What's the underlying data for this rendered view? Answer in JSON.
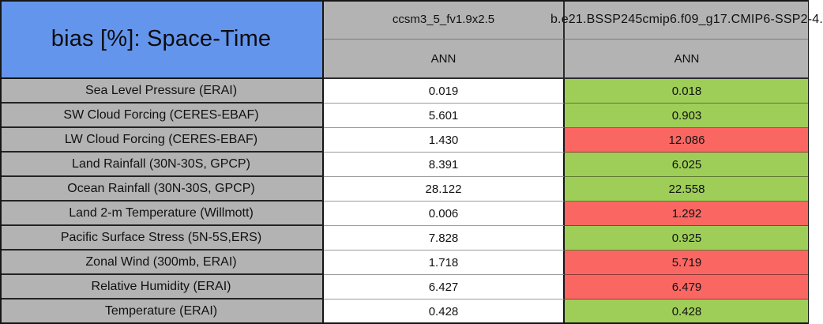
{
  "colors": {
    "title_bg": "#6495ED",
    "header_bg": "#B3B3B3",
    "label_bg": "#B3B3B3",
    "value_bg": "#FFFFFF",
    "good_bg": "#9ECE58",
    "bad_bg": "#FA6763",
    "border": "#161616"
  },
  "chart_data": {
    "type": "table",
    "title": "bias [%]: Space-Time",
    "columns": [
      {
        "model": "ccsm3_5_fv1.9x2.5",
        "season": "ANN"
      },
      {
        "model": "b.e21.BSSP245cmip6.f09_g17.CMIP6-SSP2-4.",
        "season": "ANN"
      }
    ],
    "rows": [
      {
        "label": "Sea Level Pressure (ERAI)",
        "values": [
          "0.019",
          "0.018"
        ],
        "status": "good"
      },
      {
        "label": "SW Cloud Forcing (CERES-EBAF)",
        "values": [
          "5.601",
          "0.903"
        ],
        "status": "good"
      },
      {
        "label": "LW Cloud Forcing (CERES-EBAF)",
        "values": [
          "1.430",
          "12.086"
        ],
        "status": "bad"
      },
      {
        "label": "Land Rainfall (30N-30S, GPCP)",
        "values": [
          "8.391",
          "6.025"
        ],
        "status": "good"
      },
      {
        "label": "Ocean Rainfall (30N-30S, GPCP)",
        "values": [
          "28.122",
          "22.558"
        ],
        "status": "good"
      },
      {
        "label": "Land 2-m Temperature (Willmott)",
        "values": [
          "0.006",
          "1.292"
        ],
        "status": "bad"
      },
      {
        "label": "Pacific Surface Stress (5N-5S,ERS)",
        "values": [
          "7.828",
          "0.925"
        ],
        "status": "good"
      },
      {
        "label": "Zonal Wind (300mb, ERAI)",
        "values": [
          "1.718",
          "5.719"
        ],
        "status": "bad"
      },
      {
        "label": "Relative Humidity (ERAI)",
        "values": [
          "6.427",
          "6.479"
        ],
        "status": "bad"
      },
      {
        "label": "Temperature (ERAI)",
        "values": [
          "0.428",
          "0.428"
        ],
        "status": "good"
      }
    ]
  }
}
